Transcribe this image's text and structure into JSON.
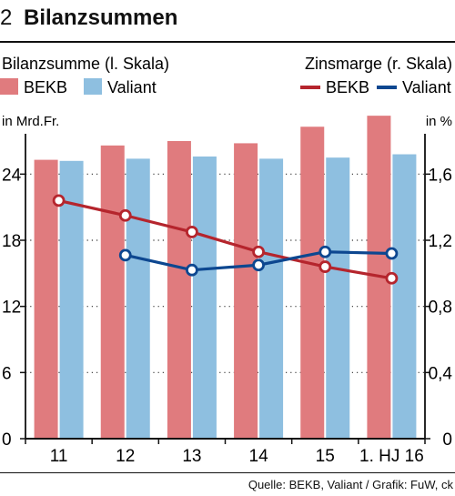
{
  "header": {
    "number": "2",
    "title": "Bilanzsummen"
  },
  "footer": {
    "source": "Quelle: BEKB, Valiant / Grafik: FuW, ck"
  },
  "chart_data": {
    "type": "bar+line",
    "title": "Bilanzsummen",
    "left_axis": {
      "heading": "Bilanzsumme  (l. Skala)",
      "unit": "in Mrd.Fr.",
      "ticks": [
        "0",
        "6",
        "12",
        "18",
        "24"
      ],
      "ylim": [
        0,
        27
      ]
    },
    "right_axis": {
      "heading": "Zinsmarge (r. Skala)",
      "unit": "in %",
      "ticks": [
        "0",
        "0,4",
        "0,8",
        "1,2",
        "1,6"
      ],
      "ylim": [
        0,
        1.8
      ]
    },
    "categories": [
      "11",
      "12",
      "13",
      "14",
      "15",
      "1. HJ 16"
    ],
    "bar_series": [
      {
        "name": "BEKB",
        "color": "#e07b7e",
        "values": [
          25.3,
          26.6,
          27.0,
          26.8,
          28.3,
          29.3
        ]
      },
      {
        "name": "Valiant",
        "color": "#8ebfe0",
        "values": [
          25.2,
          25.4,
          25.6,
          25.4,
          25.5,
          25.8
        ]
      }
    ],
    "line_series": [
      {
        "name": "BEKB",
        "color": "#b5252d",
        "values": [
          1.44,
          1.35,
          1.25,
          1.13,
          1.04,
          0.97
        ]
      },
      {
        "name": "Valiant",
        "color": "#0d4790",
        "values": [
          null,
          1.11,
          1.02,
          1.05,
          1.13,
          1.12
        ]
      }
    ],
    "grid": "dotted horizontal"
  }
}
